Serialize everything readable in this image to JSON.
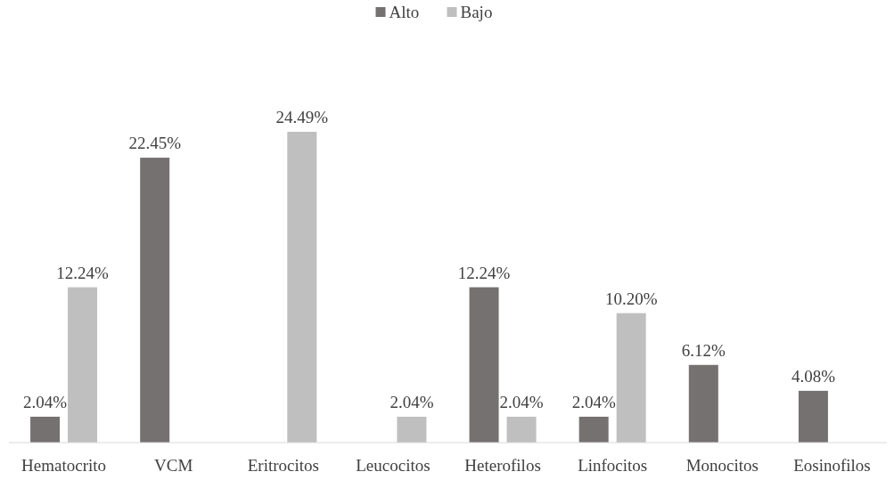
{
  "chart_data": {
    "type": "bar",
    "categories": [
      "Hematocrito",
      "VCM",
      "Eritrocitos",
      "Leucocitos",
      "Heterofilos",
      "Linfocitos",
      "Monocitos",
      "Eosinofilos"
    ],
    "series": [
      {
        "name": "Alto",
        "color": "#767171",
        "values": [
          2.04,
          22.45,
          null,
          null,
          12.24,
          2.04,
          6.12,
          4.08
        ],
        "value_labels": [
          "2.04%",
          "22.45%",
          null,
          null,
          "12.24%",
          "2.04%",
          "6.12%",
          "4.08%"
        ]
      },
      {
        "name": "Bajo",
        "color": "#bfbfbf",
        "values": [
          12.24,
          null,
          24.49,
          2.04,
          2.04,
          10.2,
          null,
          null
        ],
        "value_labels": [
          "12.24%",
          null,
          "24.49%",
          "2.04%",
          "2.04%",
          "10.20%",
          null,
          null
        ]
      }
    ],
    "legend": "top"
  }
}
